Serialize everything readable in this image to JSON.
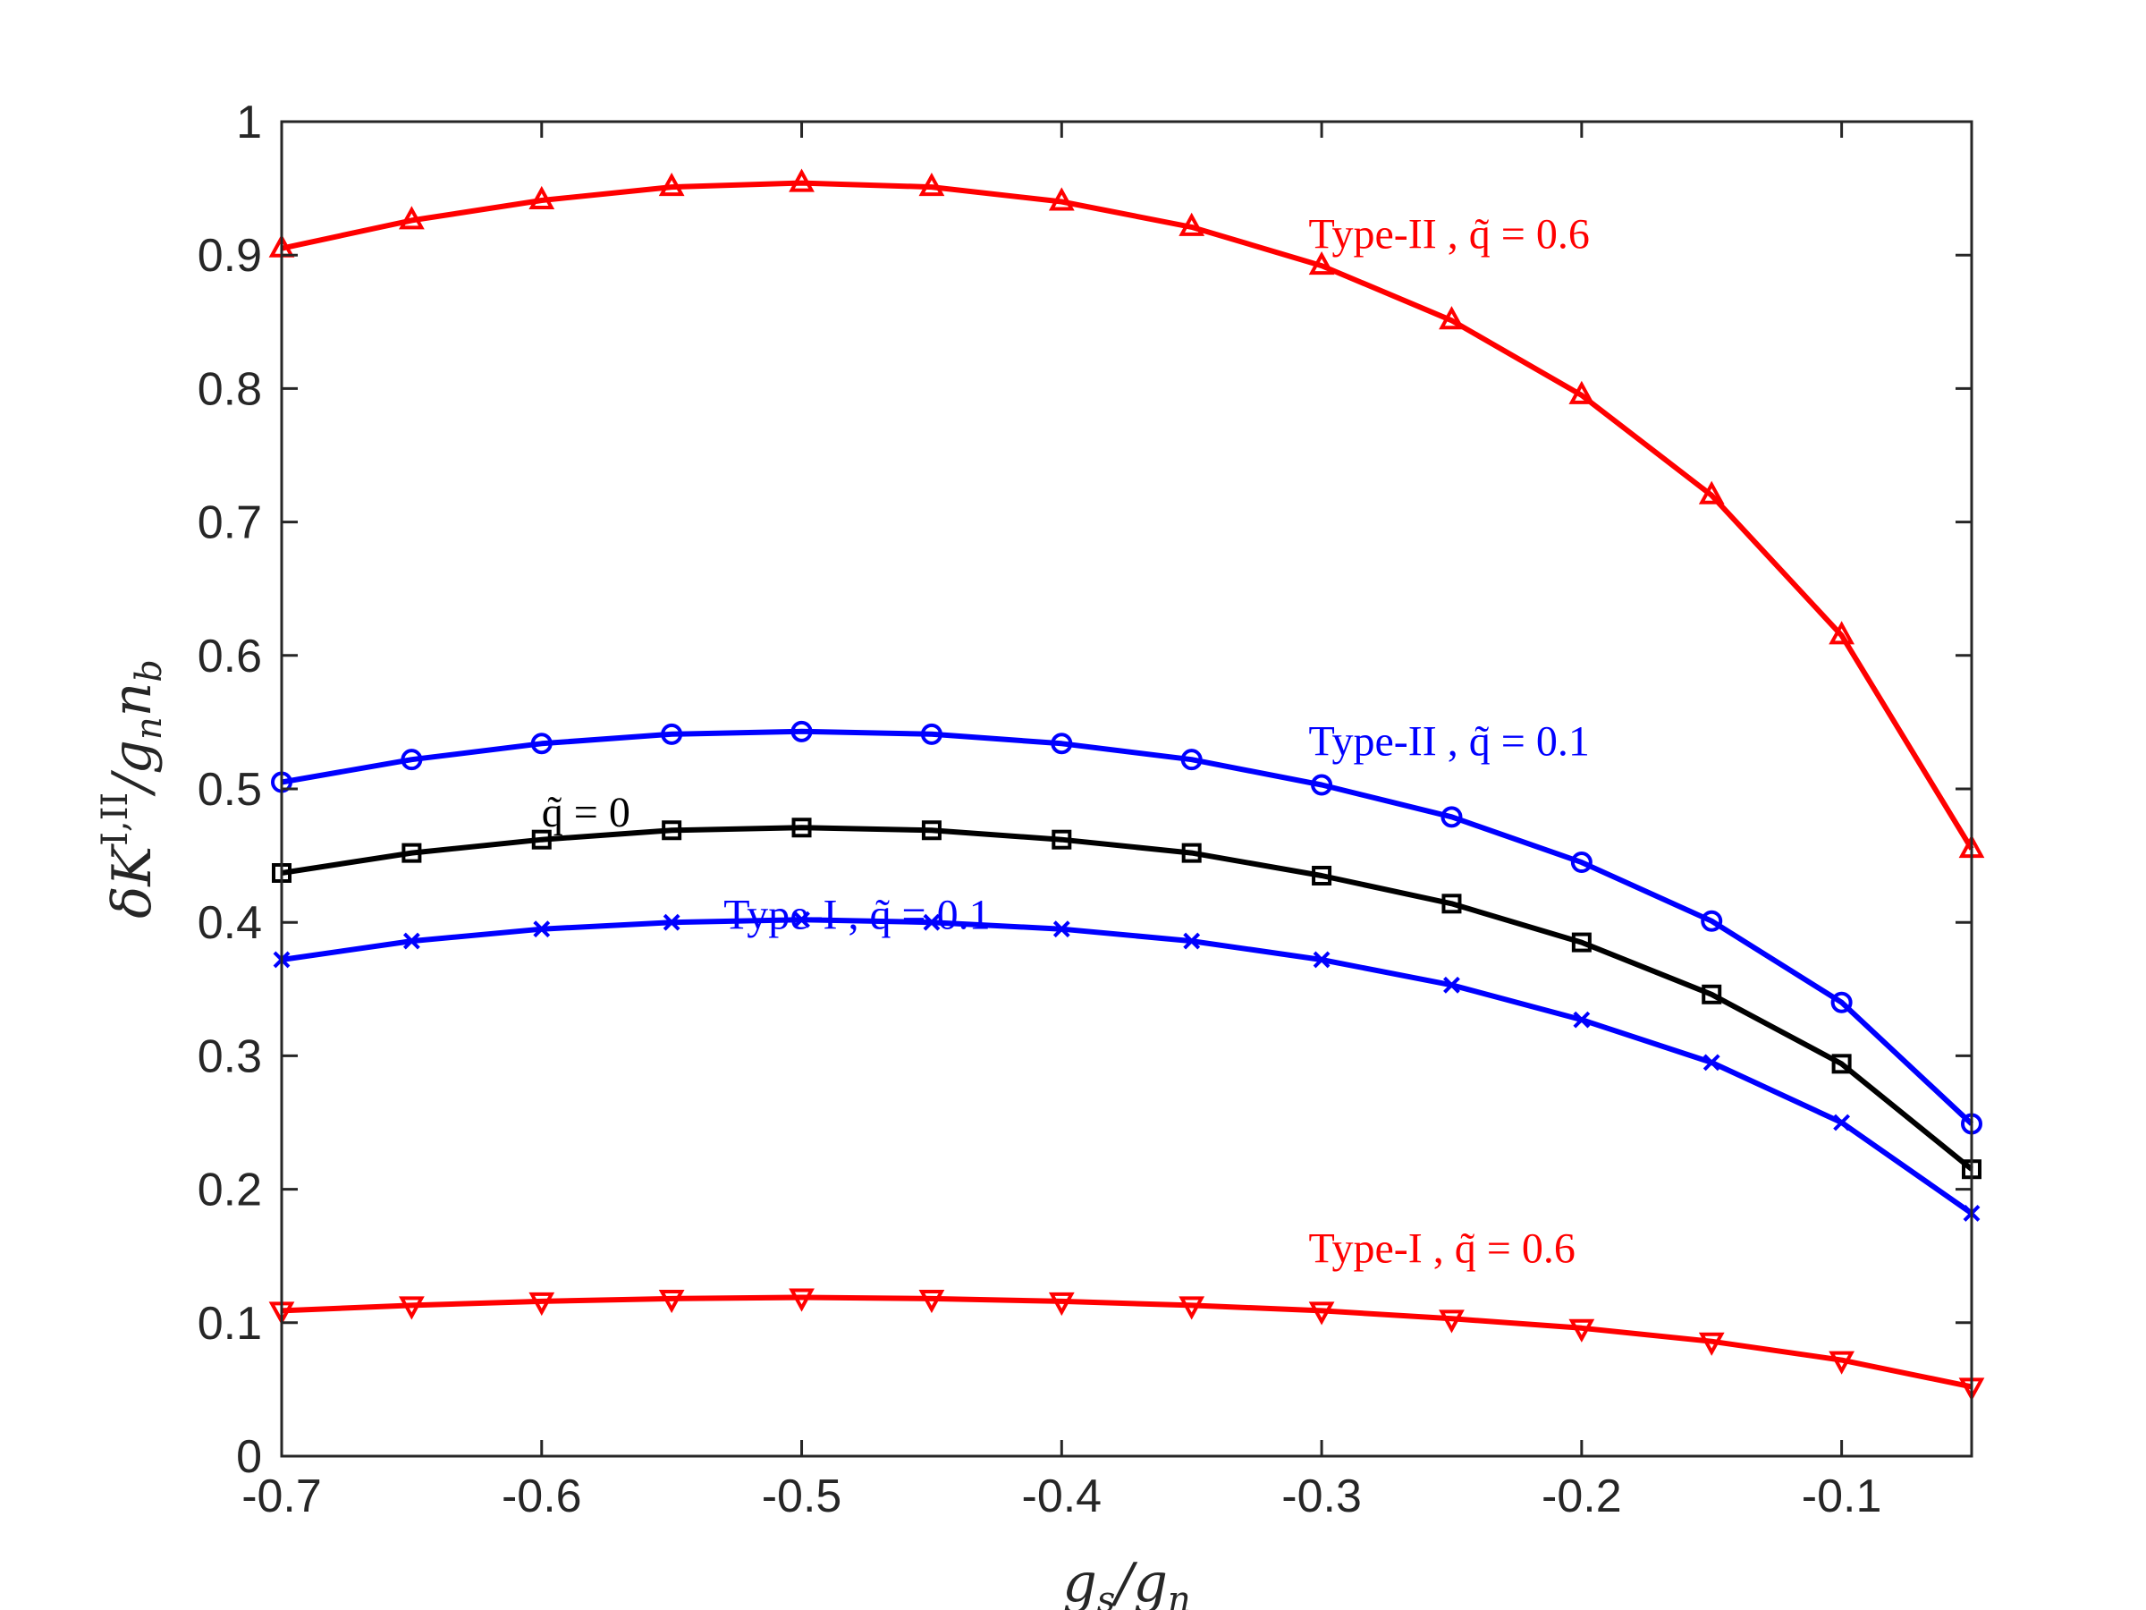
{
  "chart_data": {
    "type": "line",
    "title": "",
    "xlabel": "g_s/g_n",
    "ylabel": "δK^{I,II}/g_n n_b",
    "xlim": [
      -0.7,
      -0.05
    ],
    "ylim": [
      0,
      1
    ],
    "x_ticks": [
      -0.7,
      -0.6,
      -0.5,
      -0.4,
      -0.3,
      -0.2,
      -0.1
    ],
    "x_tick_labels": [
      "-0.7",
      "-0.6",
      "-0.5",
      "-0.4",
      "-0.3",
      "-0.2",
      "-0.1"
    ],
    "y_ticks": [
      0,
      0.1,
      0.2,
      0.3,
      0.4,
      0.5,
      0.6,
      0.7,
      0.8,
      0.9,
      1
    ],
    "y_tick_labels": [
      "0",
      "0.1",
      "0.2",
      "0.3",
      "0.4",
      "0.5",
      "0.6",
      "0.7",
      "0.8",
      "0.9",
      "1"
    ],
    "grid": false,
    "x": [
      -0.7,
      -0.65,
      -0.6,
      -0.55,
      -0.5,
      -0.45,
      -0.4,
      -0.35,
      -0.3,
      -0.25,
      -0.2,
      -0.15,
      -0.1,
      -0.05
    ],
    "series": [
      {
        "name": "Type-II q=0.6",
        "color": "#ff0000",
        "marker": "triangle-up",
        "values": [
          0.905,
          0.926,
          0.941,
          0.951,
          0.954,
          0.951,
          0.94,
          0.921,
          0.892,
          0.851,
          0.795,
          0.72,
          0.615,
          0.455
        ]
      },
      {
        "name": "Type-II q=0.1",
        "color": "#0000ff",
        "marker": "circle",
        "values": [
          0.505,
          0.522,
          0.534,
          0.541,
          0.543,
          0.541,
          0.534,
          0.522,
          0.503,
          0.479,
          0.445,
          0.401,
          0.34,
          0.249
        ]
      },
      {
        "name": "q=0",
        "color": "#000000",
        "marker": "square",
        "values": [
          0.437,
          0.452,
          0.462,
          0.469,
          0.471,
          0.469,
          0.462,
          0.452,
          0.435,
          0.414,
          0.385,
          0.346,
          0.294,
          0.215
        ]
      },
      {
        "name": "Type-I q=0.1",
        "color": "#0000ff",
        "marker": "x",
        "values": [
          0.372,
          0.386,
          0.395,
          0.4,
          0.402,
          0.4,
          0.395,
          0.386,
          0.372,
          0.353,
          0.327,
          0.295,
          0.25,
          0.182
        ]
      },
      {
        "name": "Type-I q=0.6",
        "color": "#ff0000",
        "marker": "triangle-down",
        "values": [
          0.109,
          0.113,
          0.116,
          0.118,
          0.119,
          0.118,
          0.116,
          0.113,
          0.109,
          0.103,
          0.096,
          0.086,
          0.072,
          0.052
        ]
      }
    ],
    "annotations": [
      {
        "text": "Type-II , q̃ = 0.6",
        "color": "#ff0000",
        "x": -0.305,
        "y": 0.905
      },
      {
        "text": "Type-II , q̃ = 0.1",
        "color": "#0000ff",
        "x": -0.305,
        "y": 0.525
      },
      {
        "text": "q̃ = 0",
        "color": "#000000",
        "x": -0.6,
        "y": 0.472
      },
      {
        "text": "Type-I , q̃ = 0.1",
        "color": "#0000ff",
        "x": -0.53,
        "y": 0.395
      },
      {
        "text": "Type-I , q̃ = 0.6",
        "color": "#ff0000",
        "x": -0.305,
        "y": 0.145
      }
    ]
  }
}
